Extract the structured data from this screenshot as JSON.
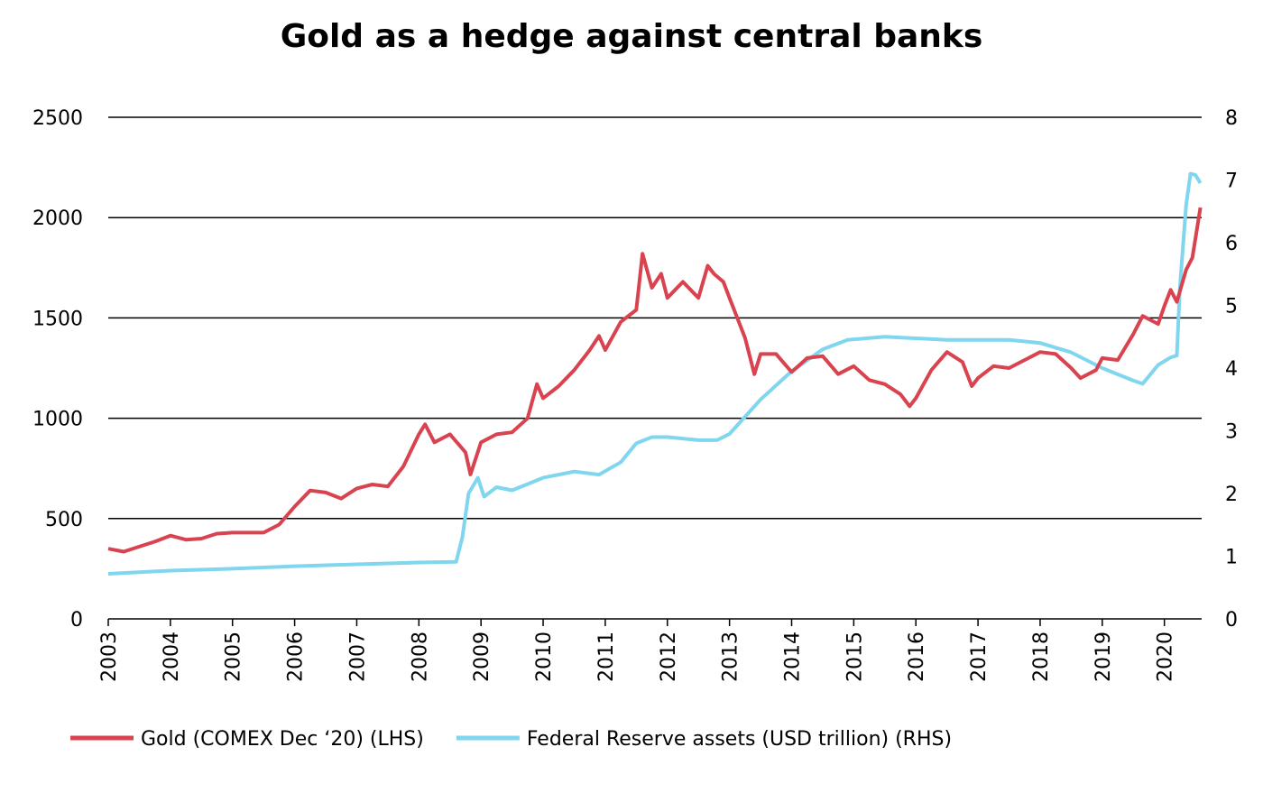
{
  "chart_data": {
    "type": "line",
    "title": "Gold as a hedge against central banks",
    "xlim": [
      2003,
      2020.6
    ],
    "xticks": [
      2003,
      2004,
      2005,
      2006,
      2007,
      2008,
      2009,
      2010,
      2011,
      2012,
      2013,
      2014,
      2015,
      2016,
      2017,
      2018,
      2019,
      2020
    ],
    "ylim": [
      0,
      2500
    ],
    "yticks": [
      0,
      500,
      1000,
      1500,
      2000,
      2500
    ],
    "y2lim": [
      0,
      8
    ],
    "y2ticks": [
      0,
      1,
      2,
      3,
      4,
      5,
      6,
      7,
      8
    ],
    "grid": true,
    "legend": "bottom",
    "series": [
      {
        "name": "Gold (COMEX Dec ‘20) (LHS)",
        "color": "#d9434f",
        "x": [
          2003.0,
          2003.25,
          2003.5,
          2003.75,
          2004.0,
          2004.25,
          2004.5,
          2004.75,
          2005.0,
          2005.25,
          2005.5,
          2005.75,
          2006.0,
          2006.25,
          2006.5,
          2006.75,
          2007.0,
          2007.25,
          2007.5,
          2007.75,
          2008.0,
          2008.1,
          2008.25,
          2008.5,
          2008.75,
          2008.83,
          2009.0,
          2009.25,
          2009.5,
          2009.75,
          2009.9,
          2010.0,
          2010.25,
          2010.5,
          2010.75,
          2010.9,
          2011.0,
          2011.25,
          2011.5,
          2011.6,
          2011.75,
          2011.9,
          2012.0,
          2012.25,
          2012.5,
          2012.65,
          2012.75,
          2012.9,
          2013.0,
          2013.25,
          2013.4,
          2013.5,
          2013.75,
          2014.0,
          2014.25,
          2014.5,
          2014.75,
          2015.0,
          2015.25,
          2015.5,
          2015.75,
          2015.9,
          2016.0,
          2016.25,
          2016.5,
          2016.75,
          2016.9,
          2017.0,
          2017.25,
          2017.5,
          2017.75,
          2018.0,
          2018.25,
          2018.5,
          2018.65,
          2018.9,
          2019.0,
          2019.25,
          2019.5,
          2019.65,
          2019.9,
          2020.0,
          2020.1,
          2020.2,
          2020.35,
          2020.45,
          2020.58
        ],
        "values": [
          350,
          335,
          360,
          385,
          415,
          395,
          400,
          425,
          430,
          430,
          430,
          470,
          560,
          640,
          630,
          600,
          650,
          670,
          660,
          760,
          920,
          970,
          880,
          920,
          830,
          720,
          880,
          920,
          930,
          1000,
          1170,
          1100,
          1160,
          1240,
          1340,
          1410,
          1340,
          1480,
          1540,
          1820,
          1650,
          1720,
          1600,
          1680,
          1600,
          1760,
          1720,
          1680,
          1600,
          1400,
          1220,
          1320,
          1320,
          1230,
          1300,
          1310,
          1220,
          1260,
          1190,
          1170,
          1120,
          1060,
          1100,
          1240,
          1330,
          1280,
          1160,
          1200,
          1260,
          1250,
          1290,
          1330,
          1320,
          1250,
          1200,
          1240,
          1300,
          1290,
          1420,
          1510,
          1470,
          1560,
          1640,
          1580,
          1740,
          1800,
          2050
        ]
      },
      {
        "name": "Federal Reserve assets (USD trillion) (RHS)",
        "color": "#7fd6ee",
        "axis": "y2",
        "x": [
          2003.0,
          2004.0,
          2005.0,
          2006.0,
          2007.0,
          2008.0,
          2008.6,
          2008.7,
          2008.8,
          2008.95,
          2009.05,
          2009.25,
          2009.5,
          2009.75,
          2010.0,
          2010.5,
          2010.9,
          2011.25,
          2011.5,
          2011.75,
          2012.0,
          2012.5,
          2012.8,
          2013.0,
          2013.5,
          2014.0,
          2014.5,
          2014.9,
          2015.5,
          2016.5,
          2017.5,
          2018.0,
          2018.5,
          2019.0,
          2019.5,
          2019.65,
          2019.9,
          2020.1,
          2020.2,
          2020.25,
          2020.35,
          2020.42,
          2020.5,
          2020.58
        ],
        "values": [
          0.72,
          0.77,
          0.8,
          0.84,
          0.87,
          0.9,
          0.91,
          1.3,
          2.0,
          2.25,
          1.95,
          2.1,
          2.05,
          2.15,
          2.25,
          2.35,
          2.3,
          2.5,
          2.8,
          2.9,
          2.9,
          2.85,
          2.85,
          2.95,
          3.5,
          3.95,
          4.3,
          4.45,
          4.5,
          4.45,
          4.45,
          4.4,
          4.25,
          4.0,
          3.8,
          3.75,
          4.05,
          4.17,
          4.2,
          5.3,
          6.6,
          7.1,
          7.08,
          6.95
        ]
      }
    ]
  }
}
